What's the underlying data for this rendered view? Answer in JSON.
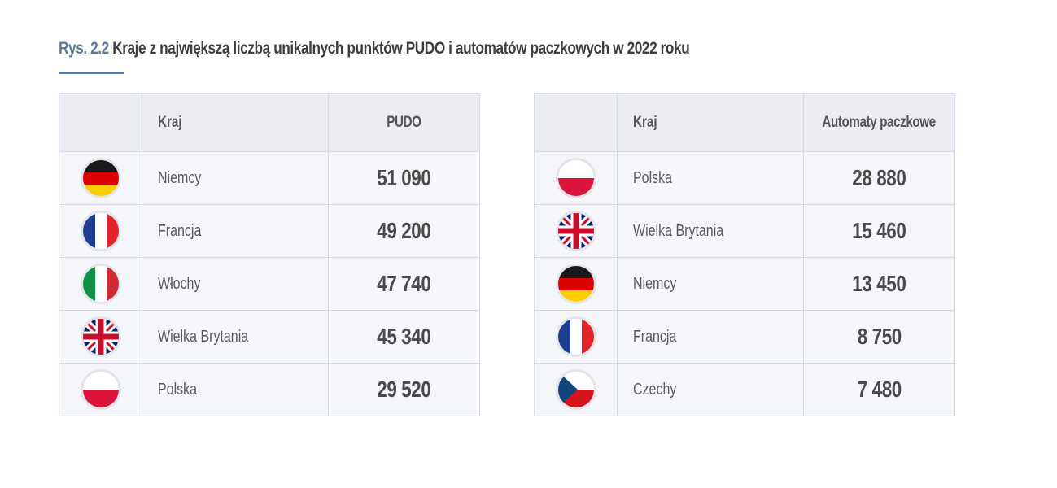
{
  "title": {
    "figure_label": "Rys. 2.2",
    "text": "Kraje z największą liczbą unikalnych punktów PUDO i automatów paczkowych w 2022 roku"
  },
  "colors": {
    "accent": "#5b7aa0",
    "header_bg": "#ecedf2",
    "row_bg": "#f5f6f9"
  },
  "pudo_table": {
    "headers": {
      "country": "Kraj",
      "value": "PUDO"
    },
    "rows": [
      {
        "flag": "germany-flag-icon",
        "country": "Niemcy",
        "value": "51 090"
      },
      {
        "flag": "france-flag-icon",
        "country": "Francja",
        "value": "49 200"
      },
      {
        "flag": "italy-flag-icon",
        "country": "Włochy",
        "value": "47 740"
      },
      {
        "flag": "uk-flag-icon",
        "country": "Wielka Brytania",
        "value": "45 340"
      },
      {
        "flag": "poland-flag-icon",
        "country": "Polska",
        "value": "29 520"
      }
    ]
  },
  "lockers_table": {
    "headers": {
      "country": "Kraj",
      "value": "Automaty paczkowe"
    },
    "rows": [
      {
        "flag": "poland-flag-icon",
        "country": "Polska",
        "value": "28 880"
      },
      {
        "flag": "uk-flag-icon",
        "country": "Wielka Brytania",
        "value": "15 460"
      },
      {
        "flag": "germany-flag-icon",
        "country": "Niemcy",
        "value": "13 450"
      },
      {
        "flag": "france-flag-icon",
        "country": "Francja",
        "value": "8 750"
      },
      {
        "flag": "czech-flag-icon",
        "country": "Czechy",
        "value": "7 480"
      }
    ]
  }
}
